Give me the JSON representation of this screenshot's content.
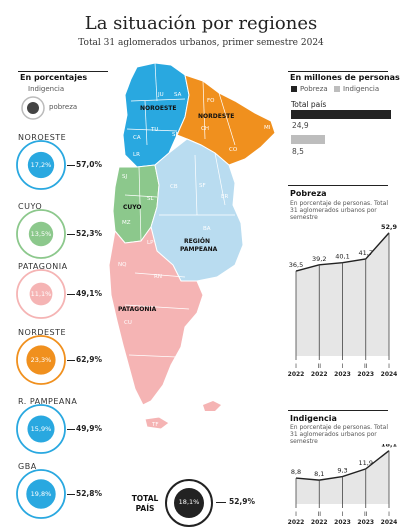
{
  "header": {
    "title": "La situación por regiones",
    "subtitle": "Total 31 aglomerados urbanos, primer semestre 2024"
  },
  "left_panel": {
    "heading": "En porcentajes",
    "legend_indigencia": "Indigencia",
    "legend_pobreza": "pobreza"
  },
  "colors": {
    "noroeste": "#29a8e0",
    "cuyo": "#8cc88c",
    "patagonia": "#f5b4b4",
    "nordeste": "#f0901e",
    "pampeana": "#b9dcf0",
    "gba": "#29a8e0",
    "total": "#222222",
    "pobreza_bar": "#222222",
    "indigencia_bar": "#bdbdbd"
  },
  "regions": [
    {
      "name": "NOROESTE",
      "indigencia": "17,2%",
      "pobreza": "57,0%",
      "pobreza_value": 57.0,
      "indigencia_value": 17.2,
      "color": "#29a8e0"
    },
    {
      "name": "CUYO",
      "indigencia": "13,5%",
      "pobreza": "52,3%",
      "pobreza_value": 52.3,
      "indigencia_value": 13.5,
      "color": "#8cc88c"
    },
    {
      "name": "PATAGONIA",
      "indigencia": "11,1%",
      "pobreza": "49,1%",
      "pobreza_value": 49.1,
      "indigencia_value": 11.1,
      "color": "#f5b4b4"
    },
    {
      "name": "NORDESTE",
      "indigencia": "23,3%",
      "pobreza": "62,9%",
      "pobreza_value": 62.9,
      "indigencia_value": 23.3,
      "color": "#f0901e"
    },
    {
      "name": "R. PAMPEANA",
      "indigencia": "15,9%",
      "pobreza": "49,9%",
      "pobreza_value": 49.9,
      "indigencia_value": 15.9,
      "color": "#29a8e0"
    },
    {
      "name": "GBA",
      "indigencia": "19,8%",
      "pobreza": "52,8%",
      "pobreza_value": 52.8,
      "indigencia_value": 19.8,
      "color": "#29a8e0"
    }
  ],
  "total": {
    "name_line1": "TOTAL",
    "name_line2": "PAÍS",
    "indigencia": "18,1%",
    "pobreza": "52,9%",
    "pobreza_value": 52.9,
    "indigencia_value": 18.1
  },
  "map": {
    "labels": {
      "noroeste": "NOROESTE",
      "nordeste": "NORDESTE",
      "cuyo": "CUYO",
      "pampeana1": "REGIÓN",
      "pampeana2": "PAMPEANA",
      "patagonia": "PATAGONIA"
    },
    "provinces": [
      "JU",
      "SA",
      "CA",
      "TU",
      "SE",
      "LR",
      "FO",
      "CH",
      "MI",
      "CO",
      "SJ",
      "MZ",
      "SL",
      "CB",
      "SF",
      "ER",
      "LP",
      "BA",
      "NQ",
      "RN",
      "CU",
      "SC",
      "TF"
    ]
  },
  "right_panel": {
    "millones_heading": "En millones de personas",
    "legend_pobreza": "Pobreza",
    "legend_indigencia": "Indigencia",
    "total_label": "Total país",
    "pobreza_value_label": "24,9",
    "indigencia_value_label": "8,5",
    "pobreza_millions": 24.9,
    "indigencia_millions": 8.5
  },
  "chart_data": [
    {
      "type": "area",
      "title": "Pobreza",
      "subtitle": "En porcentaje de personas. Total 31 aglomerados urbanos por semestre",
      "categories": [
        "I 2022",
        "II 2022",
        "I 2023",
        "II 2023",
        "I 2024"
      ],
      "tick_top": [
        "I",
        "II",
        "I",
        "II",
        "I"
      ],
      "tick_bottom": [
        "2022",
        "2022",
        "2023",
        "2023",
        "2024"
      ],
      "values": [
        36.5,
        39.2,
        40.1,
        41.7,
        52.9
      ],
      "labels": [
        "36,5",
        "39,2",
        "40,1",
        "41,7",
        "52,9"
      ],
      "ylim": [
        0,
        55
      ]
    },
    {
      "type": "area",
      "title": "Indigencia",
      "subtitle": "En porcentaje de personas. Total 31 aglomerados urbanos por semestre",
      "categories": [
        "I 2022",
        "II 2022",
        "I 2023",
        "II 2023",
        "I 2024"
      ],
      "tick_top": [
        "I",
        "II",
        "I",
        "II",
        "I"
      ],
      "tick_bottom": [
        "2022",
        "2022",
        "2023",
        "2023",
        "2024"
      ],
      "values": [
        8.8,
        8.1,
        9.3,
        11.9,
        18.1
      ],
      "labels": [
        "8,8",
        "8,1",
        "9,3",
        "11,9",
        "18,1"
      ],
      "ylim": [
        0,
        19
      ]
    }
  ]
}
